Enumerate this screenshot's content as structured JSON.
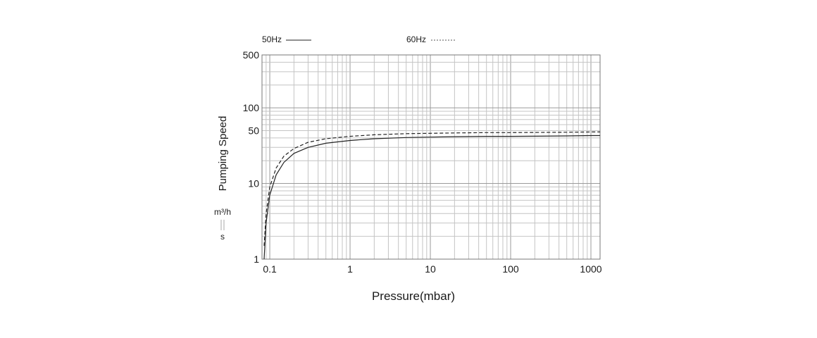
{
  "chart_data": {
    "type": "line",
    "xlabel": "Pressure(mbar)",
    "ylabel": "Pumping Speed",
    "unit_top": "m³/h",
    "unit_bottom": "s",
    "x_scale": "log",
    "y_scale": "log",
    "xlim": [
      0.08,
      1300
    ],
    "ylim": [
      1,
      500
    ],
    "x_ticks": [
      0.1,
      1,
      10,
      100,
      1000
    ],
    "x_tick_labels": [
      "0.1",
      "1",
      "10",
      "100",
      "1000"
    ],
    "y_ticks": [
      1,
      10,
      50,
      100,
      500
    ],
    "y_tick_labels": [
      "1",
      "10",
      "50",
      "100",
      "500"
    ],
    "grid": true,
    "legend_position": "top",
    "series": [
      {
        "name": "50Hz",
        "style": "solid",
        "color": "#222222",
        "x": [
          0.085,
          0.09,
          0.1,
          0.12,
          0.15,
          0.2,
          0.3,
          0.5,
          1,
          2,
          5,
          10,
          20,
          50,
          100,
          200,
          500,
          1000,
          1300
        ],
        "y": [
          1,
          3,
          7,
          13,
          19,
          25,
          30,
          34,
          37,
          39,
          40.5,
          41,
          41.5,
          42,
          42,
          42.2,
          42.5,
          43,
          43
        ]
      },
      {
        "name": "60Hz",
        "style": "dashed",
        "color": "#222222",
        "x": [
          0.085,
          0.09,
          0.1,
          0.12,
          0.15,
          0.2,
          0.3,
          0.5,
          1,
          2,
          5,
          10,
          20,
          50,
          100,
          200,
          500,
          1000,
          1300
        ],
        "y": [
          1.5,
          4,
          9,
          16,
          23,
          29,
          35,
          39,
          42,
          44,
          45.5,
          46,
          46.5,
          47,
          47,
          47.2,
          47.5,
          48,
          48
        ]
      }
    ]
  }
}
